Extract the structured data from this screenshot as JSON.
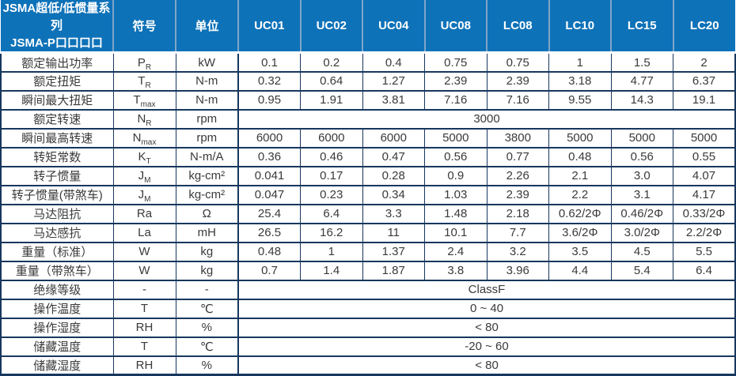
{
  "colors": {
    "header_bg": "#0E72B8",
    "header_text": "#FFFFFF",
    "header_divider": "#7EA5C9",
    "table_border": "#17375E",
    "body_text": "#3A3A3A"
  },
  "table": {
    "title_line1": "JSMA超低/低惯量系列",
    "title_line2": "JSMA-P口口口口",
    "header": {
      "symbol_label": "符号",
      "unit_label": "单位",
      "models": [
        "UC01",
        "UC02",
        "UC04",
        "UC08",
        "LC08",
        "LC10",
        "LC15",
        "LC20"
      ]
    },
    "rows": [
      {
        "label": "额定输出功率",
        "symbol": {
          "base": "P",
          "sub": "R"
        },
        "unit": "kW",
        "values": [
          "0.1",
          "0.2",
          "0.4",
          "0.75",
          "0.75",
          "1",
          "1.5",
          "2"
        ]
      },
      {
        "label": "额定扭矩",
        "symbol": {
          "base": "T",
          "sub": "R"
        },
        "unit": "N-m",
        "values": [
          "0.32",
          "0.64",
          "1.27",
          "2.39",
          "2.39",
          "3.18",
          "4.77",
          "6.37"
        ]
      },
      {
        "label": "瞬间最大扭矩",
        "symbol": {
          "base": "T",
          "sub": "max"
        },
        "unit": "N-m",
        "values": [
          "0.95",
          "1.91",
          "3.81",
          "7.16",
          "7.16",
          "9.55",
          "14.3",
          "19.1"
        ]
      },
      {
        "label": "额定转速",
        "symbol": {
          "base": "N",
          "sub": "R"
        },
        "unit": "rpm",
        "merged": "3000"
      },
      {
        "label": "瞬间最高转速",
        "symbol": {
          "base": "N",
          "sub": "max"
        },
        "unit": "rpm",
        "values": [
          "6000",
          "6000",
          "6000",
          "5000",
          "3800",
          "5000",
          "5000",
          "5000"
        ]
      },
      {
        "label": "转矩常数",
        "symbol": {
          "base": "K",
          "sub": "T"
        },
        "unit": "N-m/A",
        "values": [
          "0.36",
          "0.46",
          "0.47",
          "0.56",
          "0.77",
          "0.48",
          "0.56",
          "0.55"
        ]
      },
      {
        "label": "转子惯量",
        "symbol": {
          "base": "J",
          "sub": "M"
        },
        "unit": "kg-cm²",
        "values": [
          "0.041",
          "0.17",
          "0.28",
          "0.9",
          "2.26",
          "2.1",
          "3.0",
          "4.07"
        ]
      },
      {
        "label": "转子惯量(带煞车)",
        "symbol": {
          "base": "J",
          "sub": "M"
        },
        "unit": "kg-cm²",
        "values": [
          "0.047",
          "0.23",
          "0.34",
          "1.03",
          "2.39",
          "2.2",
          "3.1",
          "4.17"
        ]
      },
      {
        "label": "马达阻抗",
        "symbol": {
          "base": "Ra",
          "sub": ""
        },
        "unit": "Ω",
        "values": [
          "25.4",
          "6.4",
          "3.3",
          "1.48",
          "2.18",
          "0.62/2Φ",
          "0.46/2Φ",
          "0.33/2Φ"
        ]
      },
      {
        "label": "马达感抗",
        "symbol": {
          "base": "La",
          "sub": ""
        },
        "unit": "mH",
        "values": [
          "26.5",
          "16.2",
          "11",
          "10.1",
          "7.7",
          "3.6/2Φ",
          "3.0/2Φ",
          "2.2/2Φ"
        ]
      },
      {
        "label": "重量（标准）",
        "symbol": {
          "base": "W",
          "sub": ""
        },
        "unit": "kg",
        "values": [
          "0.48",
          "1",
          "1.37",
          "2.4",
          "3.2",
          "3.5",
          "4.5",
          "5.5"
        ]
      },
      {
        "label": "重量（带煞车）",
        "symbol": {
          "base": "W",
          "sub": ""
        },
        "unit": "kg",
        "values": [
          "0.7",
          "1.4",
          "1.87",
          "3.8",
          "3.96",
          "4.4",
          "5.4",
          "6.4"
        ]
      },
      {
        "label": "绝缘等级",
        "symbol": {
          "base": "-",
          "sub": ""
        },
        "unit": "-",
        "merged": "ClassF"
      },
      {
        "label": "操作温度",
        "symbol": {
          "base": "T",
          "sub": ""
        },
        "unit": "℃",
        "merged": "0 ~ 40"
      },
      {
        "label": "操作湿度",
        "symbol": {
          "base": "RH",
          "sub": ""
        },
        "unit": "%",
        "merged": "< 80"
      },
      {
        "label": "储藏温度",
        "symbol": {
          "base": "T",
          "sub": ""
        },
        "unit": "℃",
        "merged": "-20 ~ 60"
      },
      {
        "label": "储藏湿度",
        "symbol": {
          "base": "RH",
          "sub": ""
        },
        "unit": "%",
        "merged": "< 80"
      }
    ]
  }
}
